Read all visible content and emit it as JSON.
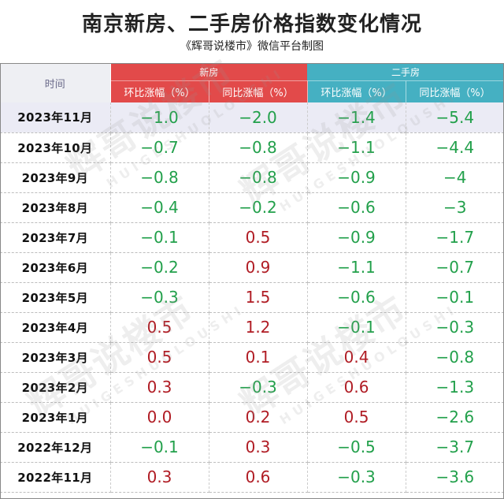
{
  "title": "南京新房、二手房价格指数变化情况",
  "subtitle": "《辉哥说楼市》微信平台制图",
  "header": {
    "time": "时间",
    "new_house": "新房",
    "second_hand": "二手房",
    "mom": "环比涨幅（%）",
    "yoy": "同比涨幅（%）"
  },
  "watermark": {
    "text": "辉哥说楼市",
    "pinyin": "HUIGESHUOLOUSHI"
  },
  "colors": {
    "new_header": "#e24a4a",
    "second_header": "#45b0c2",
    "decrease": "#22a04b",
    "increase": "#b01c24"
  },
  "rows": [
    {
      "date": "2023年11月",
      "new_mom": "−1.0",
      "new_yoy": "−2.0",
      "sh_mom": "−1.4",
      "sh_yoy": "−5.4"
    },
    {
      "date": "2023年10月",
      "new_mom": "−0.7",
      "new_yoy": "−0.8",
      "sh_mom": "−1.1",
      "sh_yoy": "−4.4"
    },
    {
      "date": "2023年9月",
      "new_mom": "−0.8",
      "new_yoy": "−0.8",
      "sh_mom": "−0.9",
      "sh_yoy": "−4"
    },
    {
      "date": "2023年8月",
      "new_mom": "−0.4",
      "new_yoy": "−0.2",
      "sh_mom": "−0.6",
      "sh_yoy": "−3"
    },
    {
      "date": "2023年7月",
      "new_mom": "−0.1",
      "new_yoy": "0.5",
      "sh_mom": "−0.9",
      "sh_yoy": "−1.7"
    },
    {
      "date": "2023年6月",
      "new_mom": "−0.2",
      "new_yoy": "0.9",
      "sh_mom": "−1.1",
      "sh_yoy": "−0.7"
    },
    {
      "date": "2023年5月",
      "new_mom": "−0.3",
      "new_yoy": "1.5",
      "sh_mom": "−0.6",
      "sh_yoy": "−0.1"
    },
    {
      "date": "2023年4月",
      "new_mom": "0.5",
      "new_yoy": "1.2",
      "sh_mom": "−0.1",
      "sh_yoy": "−0.3"
    },
    {
      "date": "2023年3月",
      "new_mom": "0.5",
      "new_yoy": "0.1",
      "sh_mom": "0.4",
      "sh_yoy": "−0.8"
    },
    {
      "date": "2023年2月",
      "new_mom": "0.3",
      "new_yoy": "−0.3",
      "sh_mom": "0.6",
      "sh_yoy": "−1.3"
    },
    {
      "date": "2023年1月",
      "new_mom": "0.0",
      "new_yoy": "0.2",
      "sh_mom": "0.5",
      "sh_yoy": "−2.6"
    },
    {
      "date": "2022年12月",
      "new_mom": "−0.1",
      "new_yoy": "0.3",
      "sh_mom": "−0.5",
      "sh_yoy": "−3.7"
    },
    {
      "date": "2022年11月",
      "new_mom": "0.3",
      "new_yoy": "0.6",
      "sh_mom": "−0.3",
      "sh_yoy": "−3.6"
    }
  ]
}
